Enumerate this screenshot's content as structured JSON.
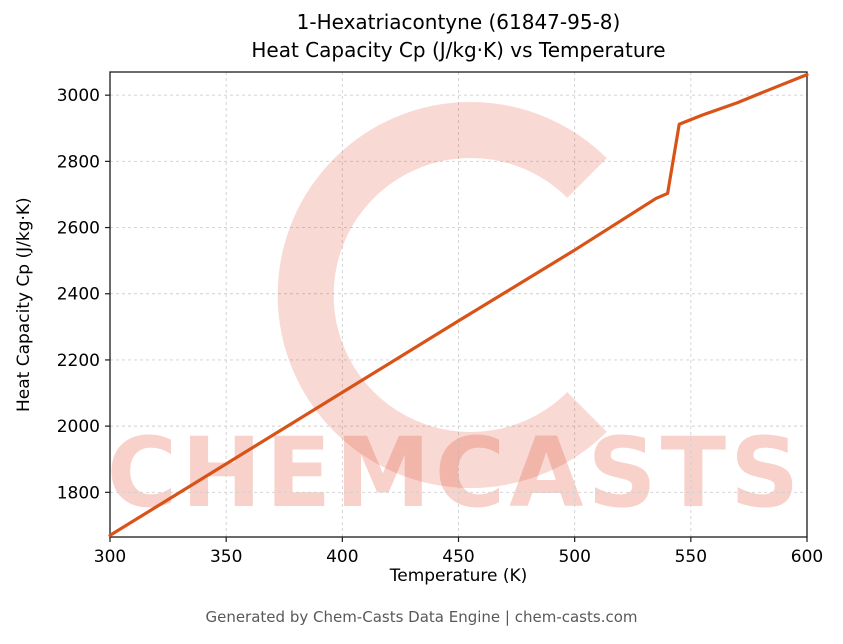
{
  "title_line1": "1-Hexatriacontyne (61847-95-8)",
  "title_line2": "Heat Capacity Cp (J/kg·K) vs Temperature",
  "watermark_text": "CHEMCASTS",
  "footer": "Generated by Chem-Casts Data Engine | chem-casts.com",
  "chart_data": {
    "type": "line",
    "title": "1-Hexatriacontyne (61847-95-8) Heat Capacity Cp (J/kg·K) vs Temperature",
    "xlabel": "Temperature (K)",
    "ylabel": "Heat Capacity Cp (J/kg·K)",
    "xlim": [
      300,
      600
    ],
    "ylim": [
      1665,
      3070
    ],
    "x_ticks": [
      300,
      350,
      400,
      450,
      500,
      550,
      600
    ],
    "y_ticks": [
      1800,
      2000,
      2200,
      2400,
      2600,
      2800,
      3000
    ],
    "grid": true,
    "legend": false,
    "line_color": "#d95319",
    "series": [
      {
        "name": "Heat Capacity Cp",
        "points": [
          [
            300,
            1670
          ],
          [
            350,
            1886
          ],
          [
            400,
            2102
          ],
          [
            450,
            2318
          ],
          [
            500,
            2532
          ],
          [
            535,
            2688
          ],
          [
            540,
            2703
          ],
          [
            545,
            2912
          ],
          [
            555,
            2940
          ],
          [
            570,
            2977
          ],
          [
            585,
            3020
          ],
          [
            600,
            3062
          ]
        ]
      }
    ]
  }
}
